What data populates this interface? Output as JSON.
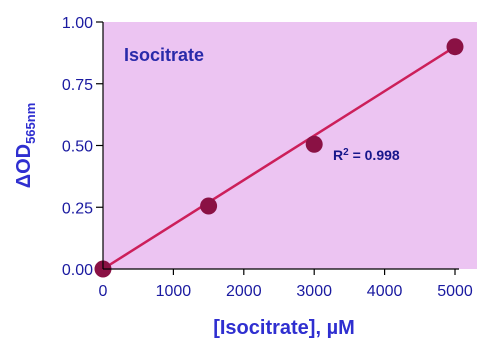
{
  "chart_data": {
    "type": "scatter",
    "title": "Isocitrate",
    "xlabel": "[Isocitrate], µM",
    "ylabel_main": "ΔOD",
    "ylabel_sub": "565nm",
    "xlim": [
      0,
      5000
    ],
    "ylim": [
      0,
      1.0
    ],
    "x_ticks": [
      "0",
      "1000",
      "2000",
      "3000",
      "4000",
      "5000"
    ],
    "y_ticks": [
      "0.00",
      "0.25",
      "0.50",
      "0.75",
      "1.00"
    ],
    "grid": false,
    "series": [
      {
        "points": [
          {
            "x": 0,
            "y": 0.0
          },
          {
            "x": 1500,
            "y": 0.255
          },
          {
            "x": 3000,
            "y": 0.505
          },
          {
            "x": 5000,
            "y": 0.9
          }
        ]
      }
    ],
    "fit_line": {
      "x": [
        0,
        5000
      ],
      "y": [
        0.0,
        0.9
      ]
    },
    "annotation": {
      "r_symbol": "R",
      "r_exp": "2",
      "r_value": " = 0.998"
    },
    "colors": {
      "plot_background": "#ecc4f2",
      "line": "#cc1f5a",
      "marker": "#8a1144",
      "axis": "#000000",
      "axis_text": "#2f2fd0"
    }
  }
}
